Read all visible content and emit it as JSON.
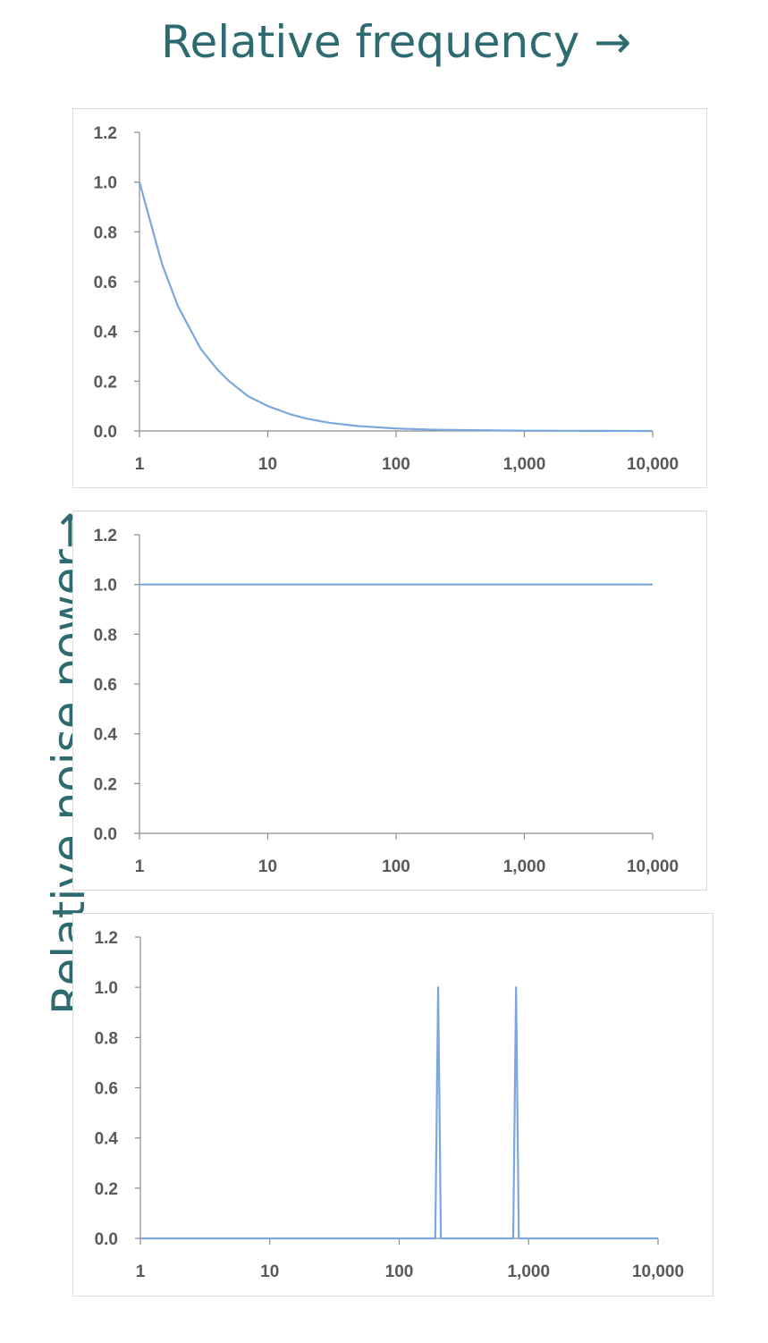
{
  "header": {
    "x_axis_title": "Relative frequency →"
  },
  "sidebar": {
    "y_axis_title": "Relative noise power→"
  },
  "colors": {
    "line": "#7ca7dc",
    "axis": "#8c8c8c",
    "title": "#2e6b70",
    "tick_text": "#595959"
  },
  "chart_data": [
    {
      "type": "line",
      "title": "",
      "xscale": "log",
      "xlim": [
        1,
        10000
      ],
      "ylim": [
        0,
        1.2
      ],
      "x_ticks": [
        "1",
        "10",
        "100",
        "1,000",
        "10,000"
      ],
      "y_ticks": [
        "0.0",
        "0.2",
        "0.4",
        "0.6",
        "0.8",
        "1.0",
        "1.2"
      ],
      "grid": false,
      "series": [
        {
          "x": [
            1,
            1.5,
            2,
            3,
            4,
            5,
            7,
            10,
            15,
            20,
            30,
            50,
            100,
            200,
            1000,
            10000
          ],
          "y": [
            1.0,
            0.67,
            0.5,
            0.33,
            0.25,
            0.2,
            0.14,
            0.1,
            0.067,
            0.05,
            0.033,
            0.02,
            0.01,
            0.005,
            0.001,
            0.0
          ]
        }
      ]
    },
    {
      "type": "line",
      "title": "",
      "xscale": "log",
      "xlim": [
        1,
        10000
      ],
      "ylim": [
        0,
        1.2
      ],
      "x_ticks": [
        "1",
        "10",
        "100",
        "1,000",
        "10,000"
      ],
      "y_ticks": [
        "0.0",
        "0.2",
        "0.4",
        "0.6",
        "0.8",
        "1.0",
        "1.2"
      ],
      "grid": false,
      "series": [
        {
          "x": [
            1,
            10000
          ],
          "y": [
            1.0,
            1.0
          ]
        }
      ]
    },
    {
      "type": "line",
      "title": "",
      "xscale": "log",
      "xlim": [
        1,
        10000
      ],
      "ylim": [
        0,
        1.2
      ],
      "x_ticks": [
        "1",
        "10",
        "100",
        "1,000",
        "10,000"
      ],
      "y_ticks": [
        "0.0",
        "0.2",
        "0.4",
        "0.6",
        "0.8",
        "1.0",
        "1.2"
      ],
      "grid": false,
      "series": [
        {
          "x": [
            1,
            190,
            200,
            210,
            760,
            800,
            840,
            10000
          ],
          "y": [
            0.0,
            0.0,
            1.0,
            0.0,
            0.0,
            1.0,
            0.0,
            0.0
          ]
        }
      ]
    }
  ]
}
